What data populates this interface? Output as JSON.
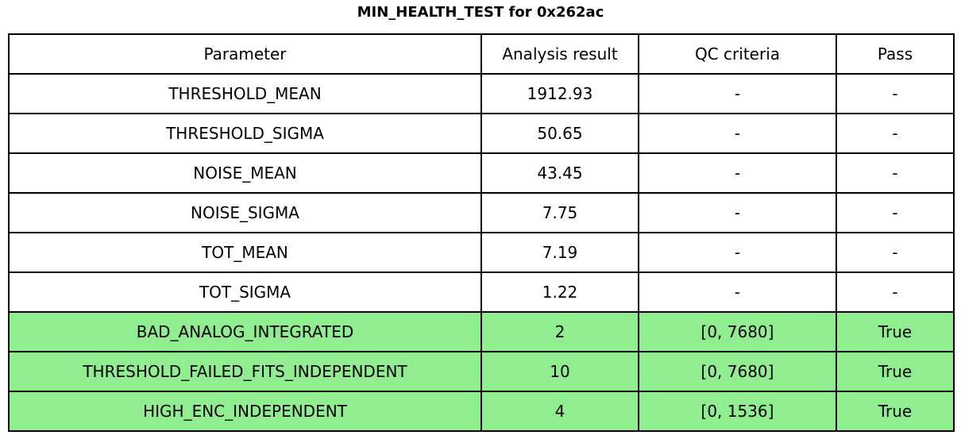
{
  "title": "MIN_HEALTH_TEST for 0x262ac",
  "colors": {
    "pass_green": "#90ee90",
    "border": "#000000",
    "background": "#ffffff",
    "text": "#000000"
  },
  "table": {
    "headers": [
      "Parameter",
      "Analysis result",
      "QC criteria",
      "Pass"
    ],
    "rows": [
      {
        "cells": [
          "THRESHOLD_MEAN",
          "1912.93",
          "-",
          "-"
        ],
        "highlight": false
      },
      {
        "cells": [
          "THRESHOLD_SIGMA",
          "50.65",
          "-",
          "-"
        ],
        "highlight": false
      },
      {
        "cells": [
          "NOISE_MEAN",
          "43.45",
          "-",
          "-"
        ],
        "highlight": false
      },
      {
        "cells": [
          "NOISE_SIGMA",
          "7.75",
          "-",
          "-"
        ],
        "highlight": false
      },
      {
        "cells": [
          "TOT_MEAN",
          "7.19",
          "-",
          "-"
        ],
        "highlight": false
      },
      {
        "cells": [
          "TOT_SIGMA",
          "1.22",
          "-",
          "-"
        ],
        "highlight": false
      },
      {
        "cells": [
          "BAD_ANALOG_INTEGRATED",
          "2",
          "[0, 7680]",
          "True"
        ],
        "highlight": true
      },
      {
        "cells": [
          "THRESHOLD_FAILED_FITS_INDEPENDENT",
          "10",
          "[0, 7680]",
          "True"
        ],
        "highlight": true
      },
      {
        "cells": [
          "HIGH_ENC_INDEPENDENT",
          "4",
          "[0, 1536]",
          "True"
        ],
        "highlight": true
      }
    ]
  },
  "chart_data": {
    "type": "table",
    "title": "MIN_HEALTH_TEST for 0x262ac",
    "columns": [
      "Parameter",
      "Analysis result",
      "QC criteria",
      "Pass"
    ],
    "rows": [
      [
        "THRESHOLD_MEAN",
        "1912.93",
        "-",
        "-"
      ],
      [
        "THRESHOLD_SIGMA",
        "50.65",
        "-",
        "-"
      ],
      [
        "NOISE_MEAN",
        "43.45",
        "-",
        "-"
      ],
      [
        "NOISE_SIGMA",
        "7.75",
        "-",
        "-"
      ],
      [
        "TOT_MEAN",
        "7.19",
        "-",
        "-"
      ],
      [
        "TOT_SIGMA",
        "1.22",
        "-",
        "-"
      ],
      [
        "BAD_ANALOG_INTEGRATED",
        "2",
        "[0, 7680]",
        "True"
      ],
      [
        "THRESHOLD_FAILED_FITS_INDEPENDENT",
        "10",
        "[0, 7680]",
        "True"
      ],
      [
        "HIGH_ENC_INDEPENDENT",
        "4",
        "[0, 1536]",
        "True"
      ]
    ],
    "highlighted_rows": [
      "BAD_ANALOG_INTEGRATED",
      "THRESHOLD_FAILED_FITS_INDEPENDENT",
      "HIGH_ENC_INDEPENDENT"
    ],
    "highlight_color": "#90ee90",
    "grid": true,
    "legend": false
  }
}
